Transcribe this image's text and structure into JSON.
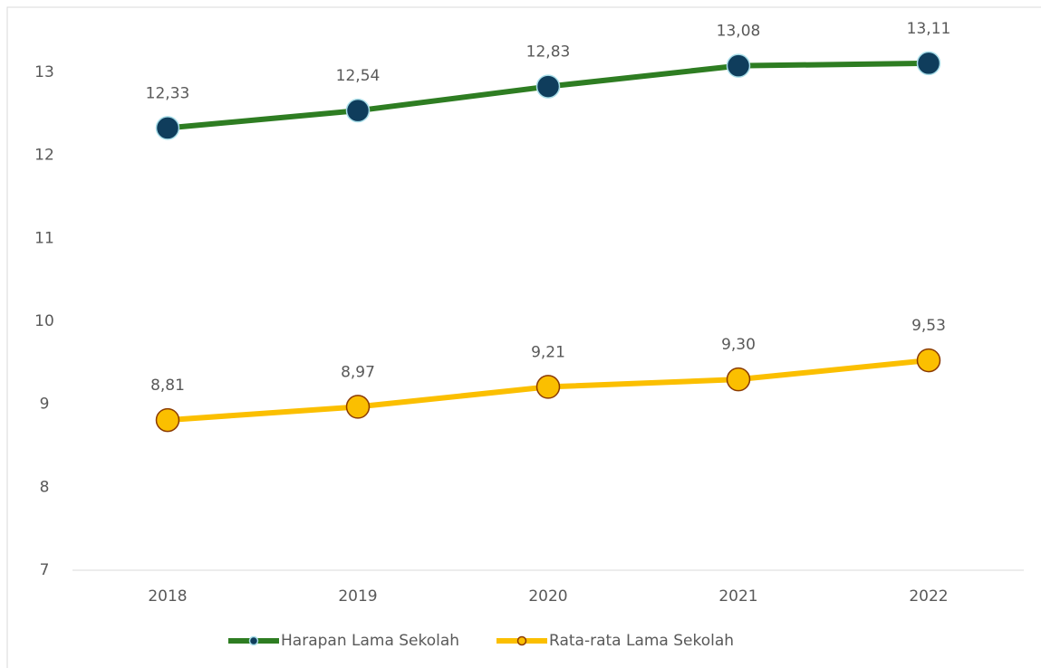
{
  "chart_data": {
    "type": "line",
    "categories": [
      "2018",
      "2019",
      "2020",
      "2021",
      "2022"
    ],
    "series": [
      {
        "name": "Harapan Lama Sekolah",
        "color": "#2e7d22",
        "marker_color": "#0f3d5c",
        "marker_edge": "#a8dde8",
        "values": [
          12.33,
          12.54,
          12.83,
          13.08,
          13.11
        ],
        "value_labels": [
          "12,33",
          "12,54",
          "12,83",
          "13,08",
          "13,11"
        ]
      },
      {
        "name": "Rata-rata Lama Sekolah",
        "color": "#fbbf00",
        "marker_color": "#fbbf00",
        "marker_edge": "#8b3a00",
        "values": [
          8.81,
          8.97,
          9.21,
          9.3,
          9.53
        ],
        "value_labels": [
          "8,81",
          "8,97",
          "9,21",
          "9,30",
          "9,53"
        ]
      }
    ],
    "ylim": [
      7,
      13
    ],
    "yticks": [
      7,
      8,
      9,
      10,
      11,
      12,
      13
    ],
    "grid": false,
    "legend": "bottom"
  }
}
